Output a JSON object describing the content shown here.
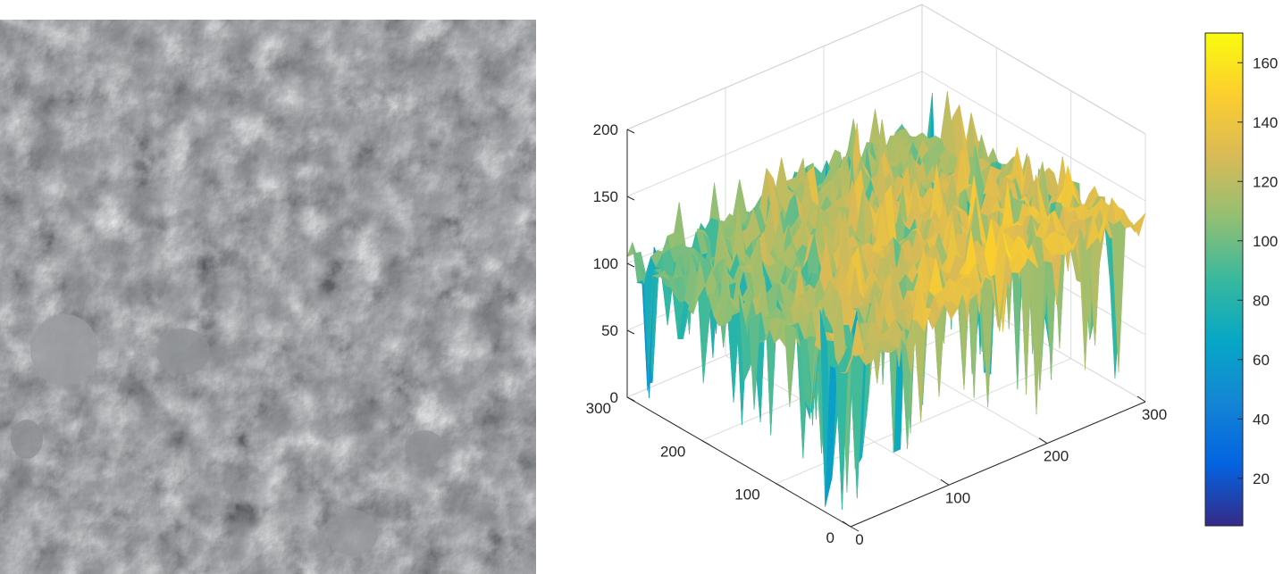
{
  "panels": [
    {
      "kind": "photo",
      "subject": "grey rocky soil surface texture"
    },
    {
      "kind": "chart"
    }
  ],
  "chart_data": {
    "type": "surface3d",
    "title": "",
    "xlabel": "",
    "ylabel": "",
    "zlabel": "",
    "x_range": [
      0,
      300
    ],
    "y_range": [
      0,
      300
    ],
    "z_range": [
      0,
      200
    ],
    "x_ticks": [
      "0",
      "100",
      "200",
      "300"
    ],
    "y_ticks": [
      "0",
      "100",
      "200",
      "300"
    ],
    "z_ticks": [
      "0",
      "50",
      "100",
      "150",
      "200"
    ],
    "colorbar_ticks": [
      "20",
      "40",
      "60",
      "80",
      "100",
      "120",
      "140",
      "160"
    ],
    "colorbar_range": [
      4,
      170
    ],
    "colormap": "parula",
    "colormap_stops": [
      "#352a87",
      "#0363e1",
      "#1485d4",
      "#06a7c6",
      "#38b99e",
      "#92bf73",
      "#d9ba56",
      "#fcce2e",
      "#f9fb0e"
    ],
    "grid": true,
    "surface_profile": {
      "x_samples": [
        0,
        50,
        100,
        150,
        200,
        250,
        300
      ],
      "y_samples": [
        0,
        50,
        100,
        150,
        200,
        250,
        300
      ],
      "z_mean": [
        [
          120,
          125,
          130,
          140,
          145,
          135,
          130
        ],
        [
          115,
          120,
          128,
          135,
          140,
          138,
          132
        ],
        [
          110,
          118,
          125,
          130,
          135,
          132,
          128
        ],
        [
          105,
          112,
          120,
          125,
          128,
          126,
          122
        ],
        [
          100,
          108,
          115,
          120,
          122,
          120,
          118
        ],
        [
          98,
          104,
          110,
          115,
          118,
          116,
          112
        ],
        [
          95,
          100,
          105,
          110,
          112,
          110,
          105
        ]
      ],
      "z_min": 4,
      "z_max": 170
    }
  }
}
